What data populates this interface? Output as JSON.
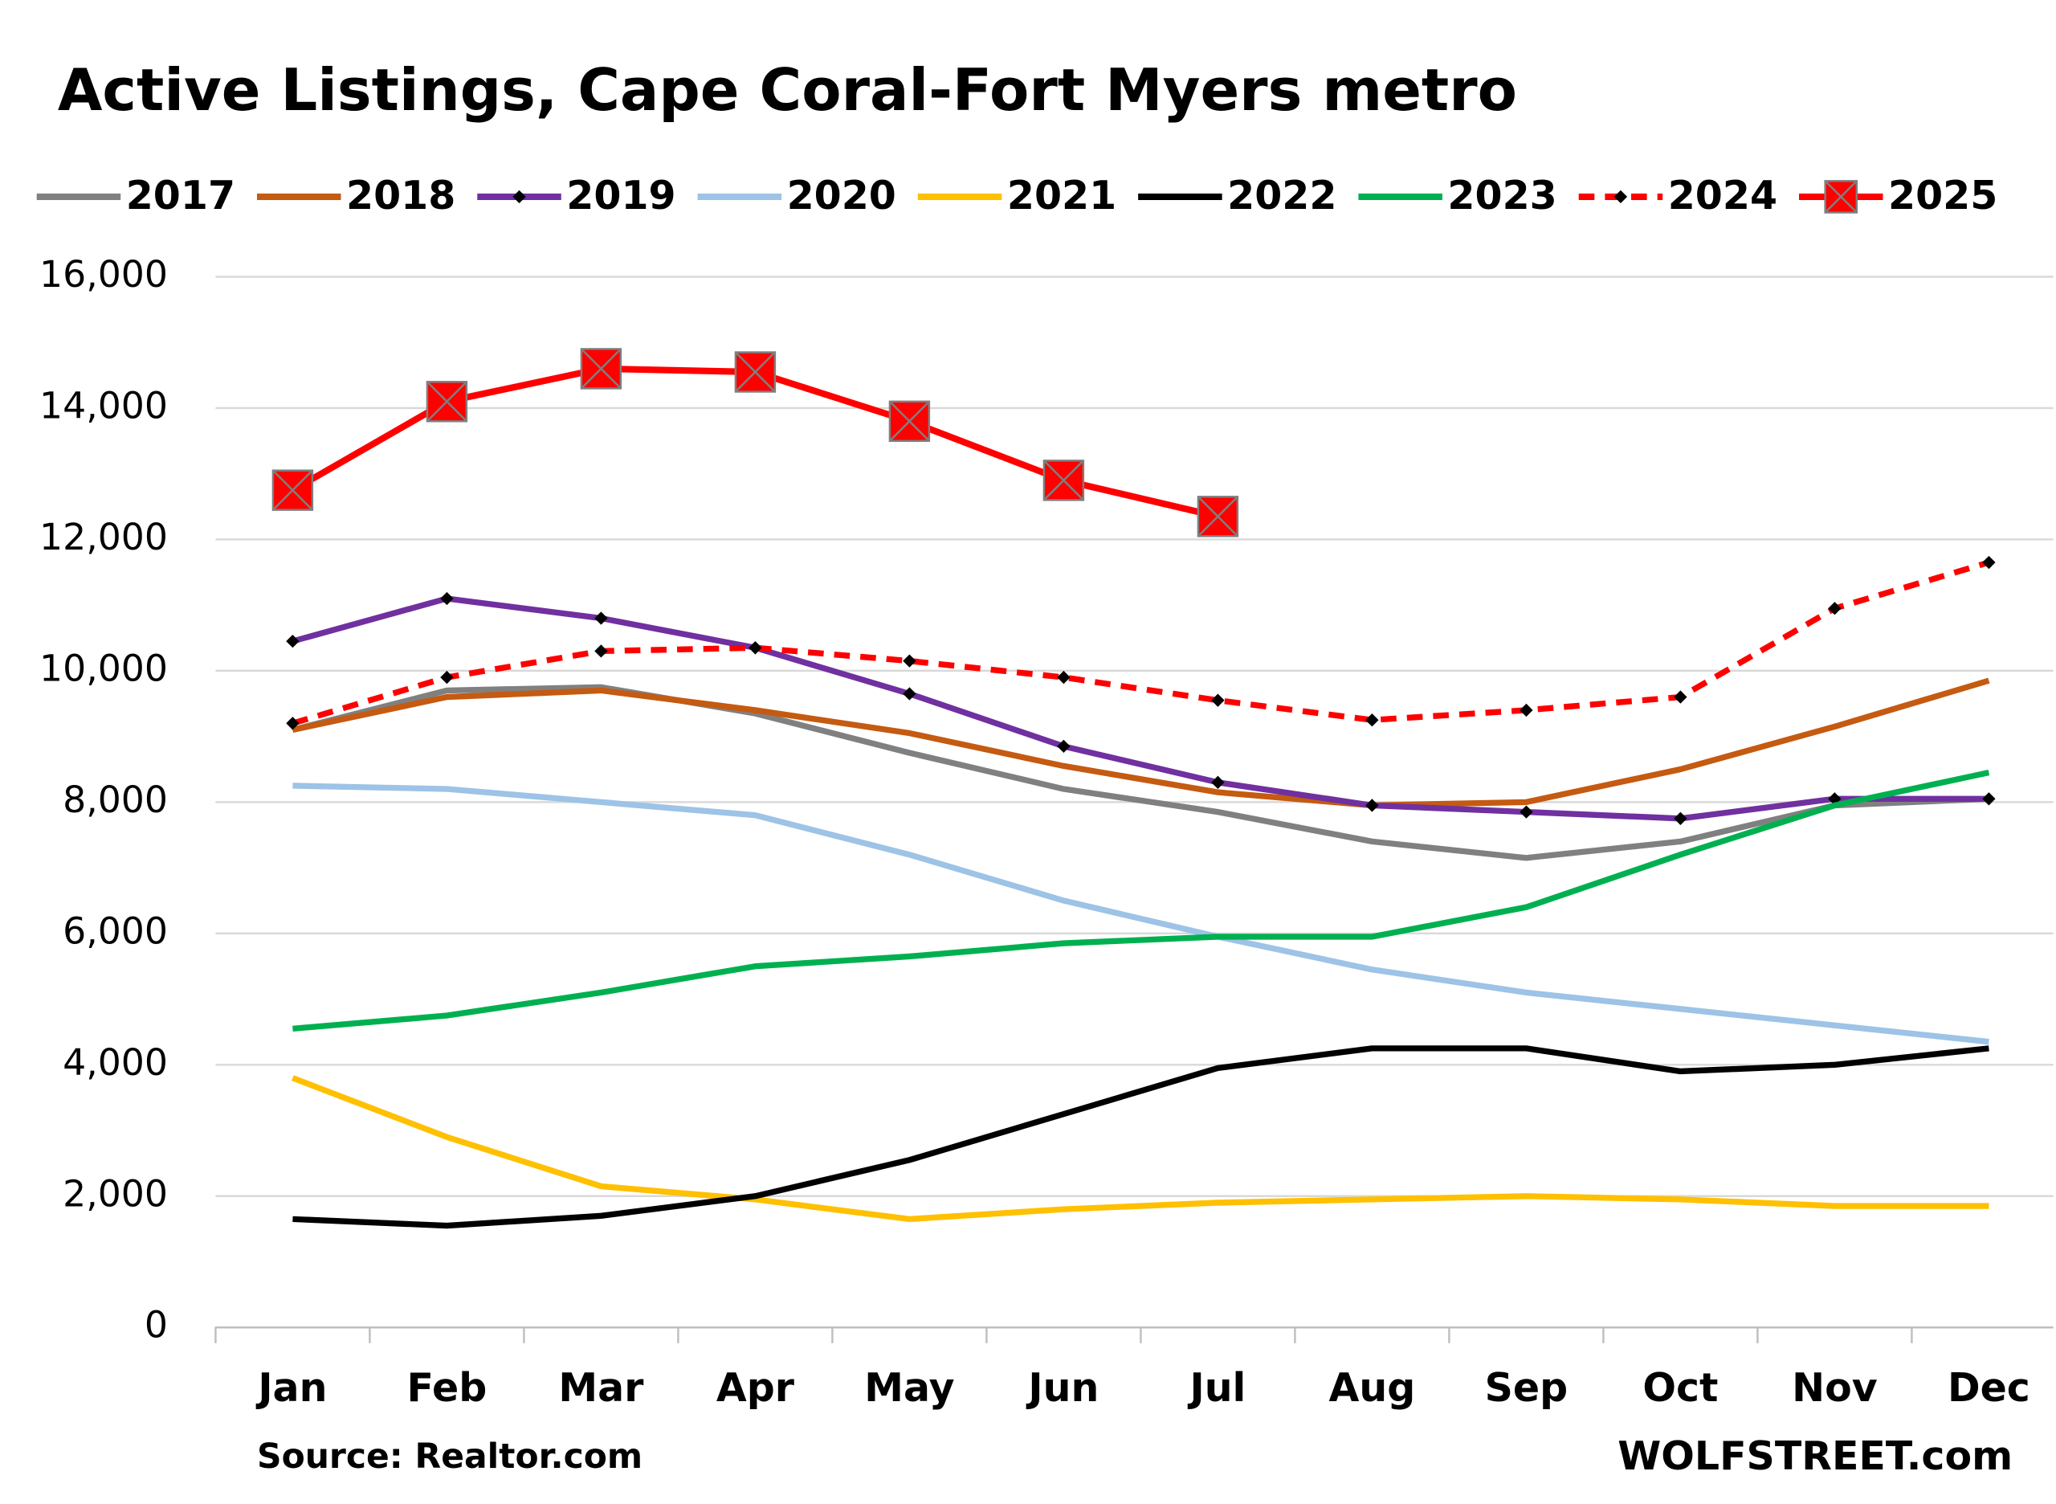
{
  "chart_data": {
    "type": "line",
    "title": "Active Listings, Cape Coral-Fort Myers metro",
    "source": "Source: Realtor.com",
    "credit": "WOLFSTREET.com",
    "categories": [
      "Jan",
      "Feb",
      "Mar",
      "Apr",
      "May",
      "Jun",
      "Jul",
      "Aug",
      "Sep",
      "Oct",
      "Nov",
      "Dec"
    ],
    "ylim": [
      0,
      16000
    ],
    "yticks": [
      0,
      {
        "value": 2000,
        "label": "2,000"
      },
      {
        "value": 4000,
        "label": "4,000"
      },
      {
        "value": 6000,
        "label": "6,000"
      },
      {
        "value": 8000,
        "label": "8,000"
      },
      {
        "value": 10000,
        "label": "10,000"
      },
      {
        "value": 12000,
        "label": "12,000"
      },
      {
        "value": 14000,
        "label": "14,000"
      },
      {
        "value": 16000,
        "label": "16,000"
      }
    ],
    "grid": true,
    "legend": "top",
    "series": [
      {
        "name": "2017",
        "color": "#808080",
        "values": [
          9100,
          9700,
          9750,
          9350,
          8750,
          8200,
          7850,
          7400,
          7150,
          7400,
          7950,
          8050
        ]
      },
      {
        "name": "2018",
        "color": "#c55a11",
        "values": [
          9100,
          9600,
          9700,
          9400,
          9050,
          8550,
          8150,
          7950,
          8000,
          8500,
          9150,
          9850
        ]
      },
      {
        "name": "2019",
        "color": "#7030a0",
        "marker": "diamond",
        "values": [
          10450,
          11100,
          10800,
          10350,
          9650,
          8850,
          8300,
          7950,
          7850,
          7750,
          8050,
          8050
        ]
      },
      {
        "name": "2020",
        "color": "#9dc3e6",
        "values": [
          8250,
          8200,
          8000,
          7800,
          7200,
          6500,
          5950,
          5450,
          5100,
          4850,
          4600,
          4350
        ]
      },
      {
        "name": "2021",
        "color": "#ffc000",
        "values": [
          3800,
          2900,
          2150,
          1950,
          1650,
          1800,
          1900,
          1950,
          2000,
          1950,
          1850,
          1850
        ]
      },
      {
        "name": "2022",
        "color": "#000000",
        "values": [
          1650,
          1550,
          1700,
          2000,
          2550,
          3250,
          3950,
          4250,
          4250,
          3900,
          4000,
          4250
        ]
      },
      {
        "name": "2023",
        "color": "#00b050",
        "values": [
          4550,
          4750,
          5100,
          5500,
          5650,
          5850,
          5950,
          5950,
          6400,
          7200,
          7950,
          8450
        ]
      },
      {
        "name": "2024",
        "color": "#ff0000",
        "marker": "diamond",
        "dashed": true,
        "values": [
          9200,
          9900,
          10300,
          10350,
          10150,
          9900,
          9550,
          9250,
          9400,
          9600,
          10950,
          11650
        ]
      },
      {
        "name": "2025",
        "color": "#ff0000",
        "marker": "square-x",
        "values": [
          12750,
          14100,
          14600,
          14550,
          13800,
          12900,
          12350,
          null,
          null,
          null,
          null,
          null
        ]
      }
    ]
  }
}
